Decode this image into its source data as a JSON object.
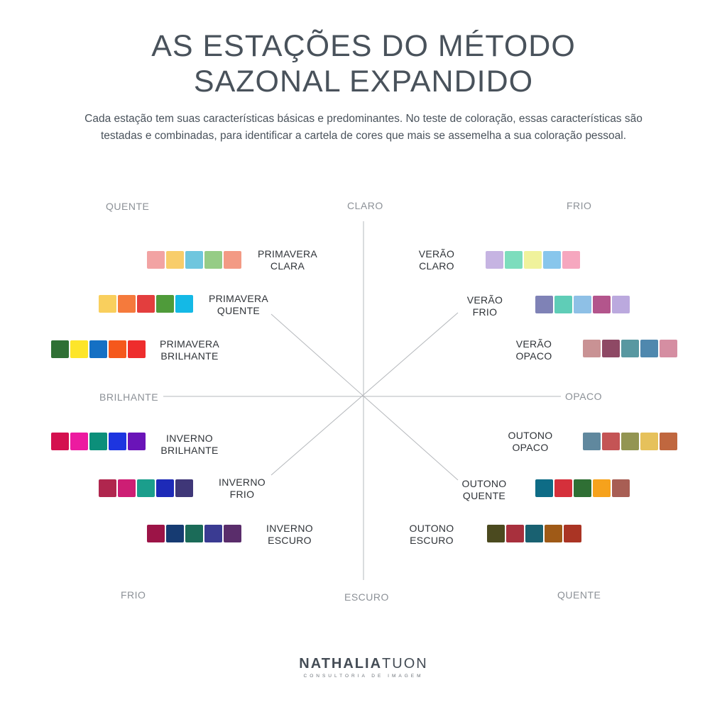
{
  "title": {
    "line1": "AS ESTAÇÕES DO MÉTODO",
    "line2": "SAZONAL EXPANDIDO"
  },
  "subtitle": "Cada estação tem suas características básicas e predominantes. No teste de coloração, essas características são testadas e combinadas, para identificar a cartela de cores que mais se assemelha a sua coloração pessoal.",
  "axes": {
    "top": "CLARO",
    "bottom": "ESCURO",
    "left": "BRILHANTE",
    "right": "OPACO",
    "top_left": "QUENTE",
    "top_right": "FRIO",
    "bottom_left": "FRIO",
    "bottom_right": "QUENTE"
  },
  "seasons": {
    "primavera_clara": {
      "line1": "PRIMAVERA",
      "line2": "CLARA",
      "colors": [
        "#f2a3a3",
        "#f8cd6a",
        "#6fc6de",
        "#96cc86",
        "#f39a84"
      ]
    },
    "primavera_quente": {
      "line1": "PRIMAVERA",
      "line2": "QUENTE",
      "colors": [
        "#f9cf5d",
        "#f57a3c",
        "#e33e3e",
        "#4f9b3a",
        "#14b9e6"
      ]
    },
    "primavera_brilhante": {
      "line1": "PRIMAVERA",
      "line2": "BRILHANTE",
      "colors": [
        "#2f7034",
        "#fde52a",
        "#1570c4",
        "#f5581c",
        "#ee2d2d"
      ]
    },
    "inverno_brilhante": {
      "line1": "INVERNO",
      "line2": "BRILHANTE",
      "colors": [
        "#d4104f",
        "#ec1ba0",
        "#0c8f7a",
        "#1d35e0",
        "#6a14b8"
      ]
    },
    "inverno_frio": {
      "line1": "INVERNO",
      "line2": "FRIO",
      "colors": [
        "#b0264e",
        "#cd1e74",
        "#1b9e8c",
        "#1d2ab8",
        "#3f3778"
      ]
    },
    "inverno_escuro": {
      "line1": "INVERNO",
      "line2": "ESCURO",
      "colors": [
        "#9c1447",
        "#163b72",
        "#1b6b58",
        "#3a3b92",
        "#5a2d6b"
      ]
    },
    "verao_claro": {
      "line1": "VERÃO",
      "line2": "CLARO",
      "colors": [
        "#c6b4e2",
        "#7dddbd",
        "#f0f29c",
        "#88c6ec",
        "#f6a7bf"
      ]
    },
    "verao_frio": {
      "line1": "VERÃO",
      "line2": "FRIO",
      "colors": [
        "#7f82b6",
        "#5fcdb7",
        "#8ec0e6",
        "#b3558c",
        "#bba9de"
      ]
    },
    "verao_opaco": {
      "line1": "VERÃO",
      "line2": "OPACO",
      "colors": [
        "#c99294",
        "#8e4965",
        "#5898a1",
        "#4f88ae",
        "#d58ea2"
      ]
    },
    "outono_opaco": {
      "line1": "OUTONO",
      "line2": "OPACO",
      "colors": [
        "#60889e",
        "#c45455",
        "#939552",
        "#e6c15b",
        "#c0673f"
      ]
    },
    "outono_quente": {
      "line1": "OUTONO",
      "line2": "QUENTE",
      "colors": [
        "#0e6c86",
        "#d5303b",
        "#2f6f34",
        "#f6a21c",
        "#a85e54"
      ]
    },
    "outono_escuro": {
      "line1": "OUTONO",
      "line2": "ESCURO",
      "colors": [
        "#4b4a1f",
        "#a8303d",
        "#196171",
        "#9f5a17",
        "#aa3424"
      ]
    }
  },
  "brand": {
    "name_bold": "NATHALIA",
    "name_light": "TUON",
    "tagline": "CONSULTORIA DE IMAGEM"
  },
  "colors": {
    "text_dark": "#49525b",
    "axis_line": "#b5b8bc",
    "axis_label": "#8c9197"
  }
}
